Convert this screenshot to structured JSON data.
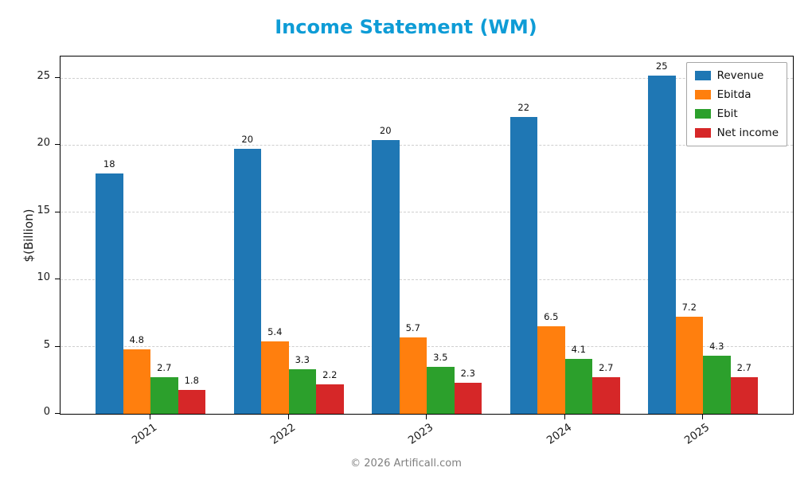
{
  "title": "Income Statement (WM)",
  "footer": "© 2026 Artificall.com",
  "colors": {
    "title": "#0e9cd6",
    "footer": "#7f7f7f",
    "grid": "#cfcfcf",
    "axis": "#000000"
  },
  "chart_data": {
    "type": "bar",
    "title": "Income Statement (WM)",
    "xlabel": "",
    "ylabel": "$(Billion)",
    "ylim": [
      0,
      26.6
    ],
    "yticks": [
      0,
      5,
      10,
      15,
      20,
      25
    ],
    "grid": true,
    "grid_style": "dashed",
    "legend_position": "upper right",
    "categories": [
      "2021",
      "2022",
      "2023",
      "2024",
      "2025"
    ],
    "series": [
      {
        "name": "Revenue",
        "color": "#1f77b4",
        "values": [
          17.9,
          19.7,
          20.4,
          22.1,
          25.2
        ],
        "labels": [
          "18",
          "20",
          "20",
          "22",
          "25"
        ]
      },
      {
        "name": "Ebitda",
        "color": "#ff7f0e",
        "values": [
          4.8,
          5.4,
          5.7,
          6.5,
          7.2
        ],
        "labels": [
          "4.8",
          "5.4",
          "5.7",
          "6.5",
          "7.2"
        ]
      },
      {
        "name": "Ebit",
        "color": "#2ca02c",
        "values": [
          2.7,
          3.3,
          3.5,
          4.1,
          4.3
        ],
        "labels": [
          "2.7",
          "3.3",
          "3.5",
          "4.1",
          "4.3"
        ]
      },
      {
        "name": "Net income",
        "color": "#d62728",
        "values": [
          1.8,
          2.2,
          2.3,
          2.7,
          2.7
        ],
        "labels": [
          "1.8",
          "2.2",
          "2.3",
          "2.7",
          "2.7"
        ]
      }
    ]
  }
}
